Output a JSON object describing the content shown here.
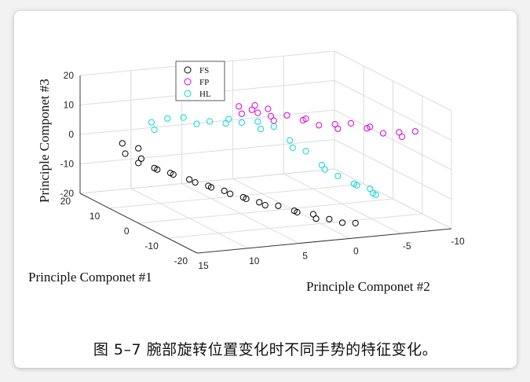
{
  "caption": "图 5–7 腕部旋转位置变化时不同手势的特征变化。",
  "chart_data": {
    "type": "scatter",
    "projection": "3d",
    "title": "",
    "xlabel": "Principle Componet #1",
    "ylabel": "Principle Componet #2",
    "zlabel": "Principle Componet #3",
    "xlim": [
      -20,
      20
    ],
    "ylim": [
      -10,
      15
    ],
    "zlim": [
      -20,
      20
    ],
    "xticks": [
      "-20",
      "-10",
      "0",
      "10",
      "20"
    ],
    "yticks": [
      "15",
      "10",
      "5",
      "0",
      "-5",
      "-10"
    ],
    "zticks": [
      "-20",
      "-10",
      "0",
      "10",
      "20"
    ],
    "grid": true,
    "legend": "top-left",
    "series": [
      {
        "name": "FS",
        "color": "#000000",
        "points": [
          [
            16,
            12,
            -2
          ],
          [
            15,
            12,
            -5
          ],
          [
            14,
            11,
            -8
          ],
          [
            12,
            10,
            -9
          ],
          [
            10,
            9,
            -10
          ],
          [
            7,
            8,
            -11
          ],
          [
            4,
            7,
            -12
          ],
          [
            2,
            6,
            -13
          ],
          [
            -1,
            5,
            -14
          ],
          [
            -3,
            4,
            -15
          ],
          [
            -6,
            3,
            -15
          ],
          [
            -8,
            2,
            -16
          ],
          [
            -11,
            1,
            -16
          ],
          [
            -13,
            0,
            -17
          ],
          [
            -14,
            -1,
            -18
          ],
          [
            -15,
            -2,
            -18
          ],
          [
            14,
            11,
            -3
          ],
          [
            13,
            11,
            -6
          ],
          [
            11,
            10,
            -9
          ],
          [
            9,
            9,
            -10
          ],
          [
            5,
            8,
            -11
          ],
          [
            3,
            7,
            -12
          ],
          [
            0,
            6,
            -13
          ],
          [
            -2,
            5,
            -14
          ],
          [
            -5,
            4,
            -15
          ],
          [
            -9,
            2,
            -16
          ],
          [
            -12,
            1,
            -17
          ]
        ]
      },
      {
        "name": "FP",
        "color": "#d400d4",
        "points": [
          [
            4,
            4,
            14
          ],
          [
            3,
            3,
            13
          ],
          [
            2,
            3,
            15
          ],
          [
            1,
            2,
            14
          ],
          [
            0,
            2,
            12
          ],
          [
            -2,
            1,
            13
          ],
          [
            -4,
            0,
            12
          ],
          [
            -6,
            -1,
            11
          ],
          [
            -8,
            -2,
            12
          ],
          [
            -10,
            -3,
            13
          ],
          [
            -12,
            -4,
            12
          ],
          [
            -14,
            -5,
            11
          ],
          [
            -16,
            -6,
            12
          ],
          [
            -18,
            -7,
            13
          ],
          [
            3,
            4,
            12
          ],
          [
            1,
            3,
            13
          ],
          [
            -1,
            2,
            11
          ],
          [
            -5,
            0,
            13
          ],
          [
            -9,
            -2,
            11
          ],
          [
            -13,
            -4,
            13
          ],
          [
            -17,
            -6,
            11
          ]
        ]
      },
      {
        "name": "HL",
        "color": "#00d8d8",
        "points": [
          [
            13,
            10,
            6
          ],
          [
            11,
            9,
            8
          ],
          [
            9,
            8,
            9
          ],
          [
            7,
            6,
            8
          ],
          [
            5,
            5,
            8
          ],
          [
            3,
            4,
            9
          ],
          [
            1,
            3,
            10
          ],
          [
            -1,
            2,
            9
          ],
          [
            -3,
            1,
            5
          ],
          [
            -5,
            0,
            2
          ],
          [
            -7,
            -1,
            -2
          ],
          [
            -9,
            -2,
            -5
          ],
          [
            -11,
            -3,
            -7
          ],
          [
            -13,
            -4,
            -8
          ],
          [
            -15,
            -4,
            -9
          ],
          [
            12,
            10,
            4
          ],
          [
            8,
            7,
            7
          ],
          [
            4,
            5,
            10
          ],
          [
            0,
            3,
            8
          ],
          [
            -4,
            1,
            3
          ],
          [
            -8,
            -1,
            -3
          ],
          [
            -12,
            -3,
            -7
          ],
          [
            -14,
            -4,
            -9
          ]
        ]
      }
    ]
  }
}
